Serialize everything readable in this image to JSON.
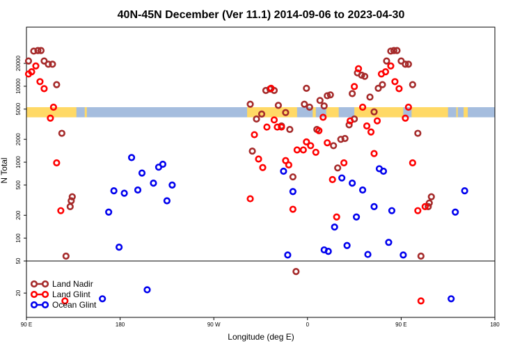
{
  "chart_data": {
    "type": "scatter",
    "title": "40N-45N December (Ver 11.1)   2014-09-06 to 2023-04-30",
    "xlabel": "Longitude (deg E)",
    "ylabel": "N Total",
    "xlim": [
      90,
      540
    ],
    "x_ticks": [
      {
        "value": 90,
        "label": "90 E"
      },
      {
        "value": 180,
        "label": "180"
      },
      {
        "value": 270,
        "label": "90 W"
      },
      {
        "value": 360,
        "label": "0"
      },
      {
        "value": 450,
        "label": "90 E"
      },
      {
        "value": 540,
        "label": "180"
      }
    ],
    "y_scale": "log",
    "upper_panel": {
      "ylim": [
        50,
        60000
      ],
      "y_ticks": [
        {
          "value": 50,
          "label": "50"
        },
        {
          "value": 100,
          "label": "100"
        },
        {
          "value": 200,
          "label": "200"
        },
        {
          "value": 500,
          "label": "500"
        },
        {
          "value": 1000,
          "label": "1000"
        },
        {
          "value": 2000,
          "label": "2000"
        },
        {
          "value": 5000,
          "label": "5000"
        },
        {
          "value": 10000,
          "label": "10000"
        },
        {
          "value": 20000,
          "label": "20000"
        }
      ]
    },
    "lower_panel": {
      "ylim": [
        10,
        50
      ],
      "y_ticks": [
        {
          "value": 20,
          "label": "20"
        }
      ]
    },
    "land_ocean_mask": {
      "y_range": [
        3900,
        5300
      ],
      "land_color": "#FFD966",
      "ocean_color": "#A5BDDE",
      "land_segments": [
        [
          90,
          138
        ],
        [
          146,
          148
        ],
        [
          302,
          350
        ],
        [
          365,
          368
        ],
        [
          378,
          390
        ],
        [
          405,
          452
        ],
        [
          460,
          495
        ],
        [
          503,
          503
        ],
        [
          510,
          514
        ]
      ]
    },
    "legend": {
      "position": "bottom-left"
    },
    "series": [
      {
        "name": "Land Nadir",
        "color": "#A52A2A",
        "points": [
          [
            92,
            21500
          ],
          [
            97,
            29000
          ],
          [
            101,
            29500
          ],
          [
            104,
            29500
          ],
          [
            107,
            21500
          ],
          [
            111,
            19500
          ],
          [
            115,
            19500
          ],
          [
            119,
            10500
          ],
          [
            132,
            260
          ],
          [
            133,
            310
          ],
          [
            134,
            350
          ],
          [
            124,
            2400
          ],
          [
            128,
            58
          ],
          [
            305,
            5800
          ],
          [
            307,
            1400
          ],
          [
            311,
            3700
          ],
          [
            316,
            4300
          ],
          [
            320,
            8800
          ],
          [
            324,
            9200
          ],
          [
            328,
            8800
          ],
          [
            332,
            5600
          ],
          [
            335,
            3000
          ],
          [
            339,
            4500
          ],
          [
            343,
            2700
          ],
          [
            346,
            640
          ],
          [
            349,
            37
          ],
          [
            357,
            5800
          ],
          [
            359,
            9400
          ],
          [
            362,
            5300
          ],
          [
            369,
            2700
          ],
          [
            372,
            6500
          ],
          [
            376,
            5500
          ],
          [
            379,
            7500
          ],
          [
            382,
            7700
          ],
          [
            385,
            1650
          ],
          [
            389,
            840
          ],
          [
            392,
            2000
          ],
          [
            396,
            2050
          ],
          [
            400,
            3100
          ],
          [
            403,
            8000
          ],
          [
            405,
            3700
          ],
          [
            408,
            15000
          ],
          [
            412,
            14000
          ],
          [
            415,
            13500
          ],
          [
            420,
            7200
          ],
          [
            424,
            4600
          ],
          [
            428,
            9400
          ],
          [
            432,
            10500
          ],
          [
            436,
            21500
          ],
          [
            440,
            29000
          ],
          [
            443,
            29500
          ],
          [
            446,
            29500
          ],
          [
            450,
            21500
          ],
          [
            454,
            19500
          ],
          [
            457,
            19500
          ],
          [
            461,
            10500
          ],
          [
            476,
            260
          ],
          [
            477,
            290
          ],
          [
            479,
            350
          ],
          [
            466,
            2400
          ],
          [
            469,
            58
          ]
        ]
      },
      {
        "name": "Land Glint",
        "color": "#FF0000",
        "points": [
          [
            92,
            14500
          ],
          [
            95,
            15500
          ],
          [
            99,
            18500
          ],
          [
            103,
            11500
          ],
          [
            107,
            9300
          ],
          [
            113,
            3800
          ],
          [
            116,
            5300
          ],
          [
            119,
            980
          ],
          [
            123,
            230
          ],
          [
            127,
            16
          ],
          [
            305,
            330
          ],
          [
            309,
            2300
          ],
          [
            313,
            1100
          ],
          [
            317,
            850
          ],
          [
            321,
            2900
          ],
          [
            325,
            9400
          ],
          [
            328,
            3600
          ],
          [
            331,
            2900
          ],
          [
            335,
            2900
          ],
          [
            339,
            1050
          ],
          [
            342,
            920
          ],
          [
            346,
            240
          ],
          [
            350,
            1450
          ],
          [
            356,
            1450
          ],
          [
            359,
            1850
          ],
          [
            363,
            1650
          ],
          [
            368,
            1350
          ],
          [
            371,
            2600
          ],
          [
            375,
            3900
          ],
          [
            379,
            1800
          ],
          [
            384,
            590
          ],
          [
            388,
            190
          ],
          [
            395,
            980
          ],
          [
            401,
            3500
          ],
          [
            405,
            9900
          ],
          [
            409,
            17000
          ],
          [
            413,
            5300
          ],
          [
            417,
            3000
          ],
          [
            421,
            2500
          ],
          [
            424,
            1300
          ],
          [
            427,
            3500
          ],
          [
            431,
            14500
          ],
          [
            435,
            15500
          ],
          [
            440,
            18500
          ],
          [
            444,
            11500
          ],
          [
            448,
            9300
          ],
          [
            454,
            3800
          ],
          [
            457,
            5300
          ],
          [
            461,
            980
          ],
          [
            466,
            230
          ],
          [
            469,
            16
          ],
          [
            473,
            260
          ]
        ]
      },
      {
        "name": "Ocean Glint",
        "color": "#0000EE",
        "points": [
          [
            163,
            17
          ],
          [
            169,
            220
          ],
          [
            174,
            420
          ],
          [
            179,
            76
          ],
          [
            184,
            390
          ],
          [
            191,
            1150
          ],
          [
            197,
            430
          ],
          [
            201,
            720
          ],
          [
            206,
            22
          ],
          [
            212,
            530
          ],
          [
            217,
            860
          ],
          [
            221,
            940
          ],
          [
            225,
            310
          ],
          [
            230,
            500
          ],
          [
            337,
            760
          ],
          [
            341,
            60
          ],
          [
            346,
            410
          ],
          [
            376,
            70
          ],
          [
            380,
            67
          ],
          [
            386,
            140
          ],
          [
            393,
            620
          ],
          [
            398,
            80
          ],
          [
            403,
            530
          ],
          [
            407,
            190
          ],
          [
            413,
            430
          ],
          [
            418,
            61
          ],
          [
            424,
            260
          ],
          [
            429,
            820
          ],
          [
            433,
            760
          ],
          [
            438,
            88
          ],
          [
            441,
            230
          ],
          [
            452,
            60
          ],
          [
            498,
            17
          ],
          [
            502,
            220
          ],
          [
            511,
            420
          ]
        ]
      }
    ]
  }
}
